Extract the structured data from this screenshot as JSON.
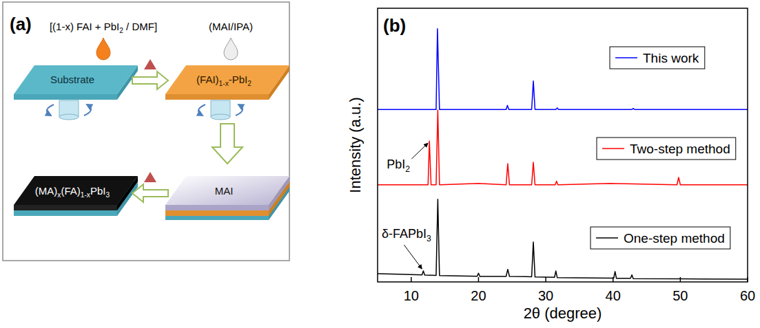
{
  "diagram": {
    "panel_label": "(a)",
    "steps": [
      {
        "label": "[(1-x) FAI + PbI2 / DMF]"
      },
      {
        "label": "(MAI/IPA)"
      }
    ],
    "nodes": [
      {
        "label": "Substrate"
      },
      {
        "label": "(FAI)1-x-PbI2"
      },
      {
        "label": "MAI"
      },
      {
        "label": "(MA)x(FA)1-xPbI3"
      }
    ]
  },
  "chart_data": {
    "type": "line",
    "panel_label": "(b)",
    "x_label": "2θ (degree)",
    "y_label": "Intensity (a.u.)",
    "xlim": [
      5,
      60
    ],
    "xticks": [
      10,
      20,
      30,
      40,
      50,
      60
    ],
    "ylim": [
      0,
      100
    ],
    "tick_labels": "x",
    "legend": "right",
    "series": [
      {
        "name": "This work",
        "color": "#0000ff",
        "x": [
          5,
          10,
          13.7,
          13.9,
          14.2,
          20,
          24.1,
          24.3,
          24.5,
          27.9,
          28.15,
          28.4,
          31.5,
          31.7,
          31.9,
          42.8,
          43,
          43.2,
          60
        ],
        "values": [
          63,
          63,
          63,
          92.5,
          63,
          63,
          63,
          64.5,
          63,
          63,
          73.4,
          63,
          63,
          63.6,
          63,
          63,
          63.4,
          63,
          63
        ]
      },
      {
        "name": "Two-step method",
        "color": "#ff0000",
        "x": [
          5,
          8,
          12.5,
          12.7,
          12.95,
          13.7,
          13.95,
          14.2,
          20,
          24.1,
          24.35,
          24.6,
          27.9,
          28.15,
          28.4,
          31.4,
          31.6,
          31.8,
          39.5,
          49.5,
          49.75,
          50,
          60
        ],
        "values": [
          35.5,
          35.5,
          35.5,
          51.5,
          35.5,
          35.5,
          62.8,
          35.5,
          36,
          35.5,
          43.2,
          35.5,
          35.5,
          43.7,
          35.5,
          35.5,
          36.8,
          35.5,
          36,
          35.5,
          38.2,
          35.5,
          35.5
        ]
      },
      {
        "name": "One-step method",
        "color": "#000000",
        "x": [
          5,
          8,
          11.6,
          11.8,
          12,
          13.7,
          13.95,
          14.2,
          19.8,
          20,
          20.2,
          24.1,
          24.35,
          24.6,
          27.9,
          28.15,
          28.4,
          31.3,
          31.5,
          31.7,
          40.1,
          40.3,
          40.5,
          42.6,
          42.8,
          43,
          50,
          60
        ],
        "values": [
          3,
          2.8,
          2.6,
          4,
          2.5,
          2.4,
          30.2,
          2.3,
          2.1,
          3.2,
          2,
          2,
          4.6,
          2,
          1.9,
          14.6,
          1.8,
          1.7,
          4,
          1.6,
          1.4,
          3.8,
          1.3,
          1.3,
          2.6,
          1.2,
          1.1,
          1
        ]
      }
    ],
    "annotations": [
      {
        "text": "PbI2",
        "x": 12.7,
        "y": 51.5
      },
      {
        "text": "δ-FAPbI3",
        "x": 11.8,
        "y": 4
      }
    ]
  }
}
